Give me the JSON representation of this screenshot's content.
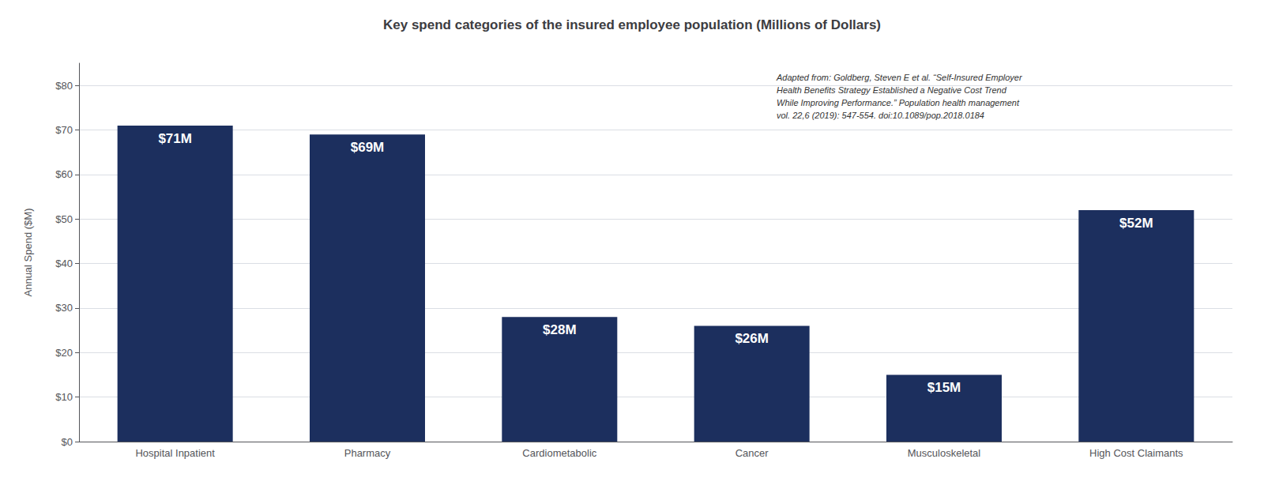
{
  "chart_data": {
    "type": "bar",
    "title": "Key spend categories of the insured employee population (Millions of Dollars)",
    "categories": [
      "Hospital Inpatient",
      "Pharmacy",
      "Cardiometabolic",
      "Cancer",
      "Musculoskeletal",
      "High Cost Claimants"
    ],
    "values": [
      71,
      69,
      28,
      26,
      15,
      52
    ],
    "value_labels": [
      "$71M",
      "$69M",
      "$28M",
      "$26M",
      "$15M",
      "$52M"
    ],
    "data_labels": true,
    "color": "#1c2f5e",
    "ylabel": "Annual Spend ($M)",
    "ylim": [
      0,
      85
    ],
    "yticks": [
      {
        "value": 0,
        "label": "$0"
      },
      {
        "value": 10,
        "label": "$10"
      },
      {
        "value": 20,
        "label": "$20"
      },
      {
        "value": 30,
        "label": "$30"
      },
      {
        "value": 40,
        "label": "$40"
      },
      {
        "value": 50,
        "label": "$50"
      },
      {
        "value": 60,
        "label": "$60"
      },
      {
        "value": 70,
        "label": "$70"
      },
      {
        "value": 80,
        "label": "$80"
      }
    ],
    "grid": true,
    "annotation": "Adapted from: Goldberg, Steven E et al. “Self-Insured Employer\nHealth Benefits Strategy Established a Negative Cost Trend\nWhile Improving Performance.” Population health management\nvol. 22,6 (2019): 547-554. doi:10.1089/pop.2018.0184"
  }
}
